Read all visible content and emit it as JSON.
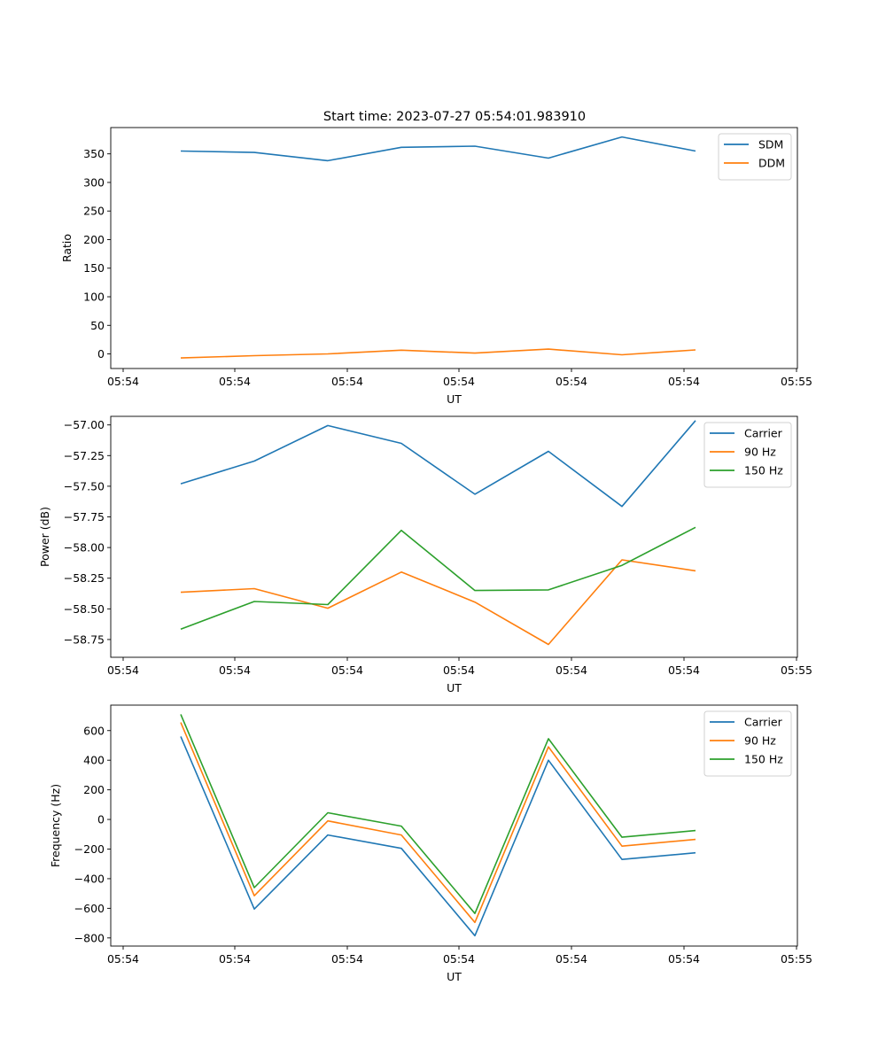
{
  "figure": {
    "title": "Start time: 2023-07-27 05:54:01.983910"
  },
  "chart_data": [
    {
      "type": "line",
      "xlabel": "UT",
      "ylabel": "Ratio",
      "x_tick_labels": [
        "05:54",
        "05:54",
        "05:54",
        "05:54",
        "05:54",
        "05:54",
        "05:54",
        "05:55"
      ],
      "ylim": [
        -25.5,
        396
      ],
      "y_ticks": [
        0,
        50,
        100,
        150,
        200,
        250,
        300,
        350
      ],
      "y_tick_labels": [
        "0",
        "50",
        "100",
        "150",
        "200",
        "250",
        "300",
        "350"
      ],
      "legend_position": "top-right",
      "series": [
        {
          "name": "SDM",
          "color": "#1f77b4",
          "values": [
            355,
            352.5,
            338,
            361.5,
            363.5,
            342.5,
            379.5,
            355
          ]
        },
        {
          "name": "DDM",
          "color": "#ff7f0e",
          "values": [
            -7,
            -3,
            0,
            6.5,
            1.5,
            8.5,
            -1.5,
            7
          ]
        }
      ]
    },
    {
      "type": "line",
      "xlabel": "UT",
      "ylabel": "Power (dB)",
      "x_tick_labels": [
        "05:54",
        "05:54",
        "05:54",
        "05:54",
        "05:54",
        "05:54",
        "05:54",
        "05:55"
      ],
      "ylim": [
        -58.895,
        -56.93
      ],
      "y_ticks": [
        -58.75,
        -58.5,
        -58.25,
        -58.0,
        -57.75,
        -57.5,
        -57.25,
        -57.0
      ],
      "y_tick_labels": [
        "−58.75",
        "−58.50",
        "−58.25",
        "−58.00",
        "−57.75",
        "−57.50",
        "−57.25",
        "−57.00"
      ],
      "legend_position": "top-right",
      "series": [
        {
          "name": "Carrier",
          "color": "#1f77b4",
          "values": [
            -57.48,
            -57.295,
            -57.005,
            -57.15,
            -57.565,
            -57.215,
            -57.665,
            -56.965
          ]
        },
        {
          "name": "90 Hz",
          "color": "#ff7f0e",
          "values": [
            -58.365,
            -58.335,
            -58.495,
            -58.2,
            -58.445,
            -58.79,
            -58.1,
            -58.19
          ]
        },
        {
          "name": "150 Hz",
          "color": "#2ca02c",
          "values": [
            -58.665,
            -58.44,
            -58.465,
            -57.86,
            -58.35,
            -58.345,
            -58.145,
            -57.835
          ]
        }
      ]
    },
    {
      "type": "line",
      "xlabel": "UT",
      "ylabel": "Frequency (Hz)",
      "x_tick_labels": [
        "05:54",
        "05:54",
        "05:54",
        "05:54",
        "05:54",
        "05:54",
        "05:54",
        "05:55"
      ],
      "ylim": [
        -855,
        772
      ],
      "y_ticks": [
        -800,
        -600,
        -400,
        -200,
        0,
        200,
        400,
        600
      ],
      "y_tick_labels": [
        "−800",
        "−600",
        "−400",
        "−200",
        "0",
        "200",
        "400",
        "600"
      ],
      "legend_position": "top-right",
      "series": [
        {
          "name": "Carrier",
          "color": "#1f77b4",
          "values": [
            560,
            -605,
            -105,
            -195,
            -785,
            400,
            -270,
            -225
          ]
        },
        {
          "name": "90 Hz",
          "color": "#ff7f0e",
          "values": [
            655,
            -515,
            -10,
            -105,
            -695,
            490,
            -180,
            -135
          ]
        },
        {
          "name": "150 Hz",
          "color": "#2ca02c",
          "values": [
            710,
            -460,
            45,
            -45,
            -635,
            545,
            -120,
            -75
          ]
        }
      ]
    }
  ]
}
